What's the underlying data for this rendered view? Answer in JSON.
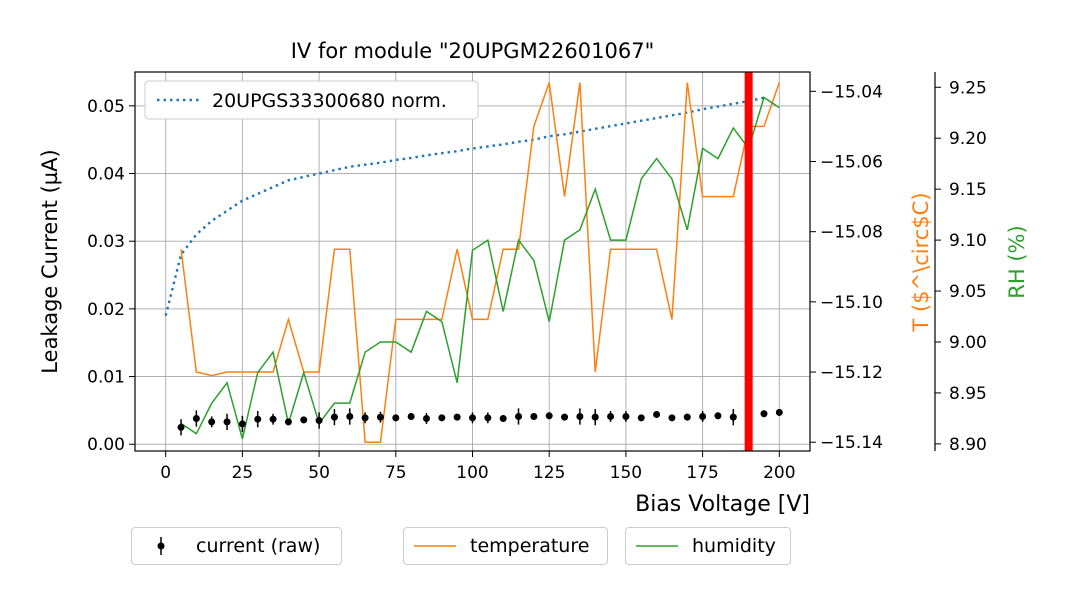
{
  "chart_data": {
    "type": "scatter",
    "title": "IV for module \"20UPGM22601067\"",
    "xlabel": "Bias Voltage [V]",
    "ylabel": "Leakage Current (µA)",
    "y2label": "T ($^\\circ$C)",
    "y3label": "RH (%)",
    "xlim": [
      -10,
      210
    ],
    "ylim": [
      -0.001,
      0.055
    ],
    "y2lim": [
      -15.1425,
      -15.0345
    ],
    "y3lim": [
      8.893,
      9.265
    ],
    "xticks": [
      "0",
      "25",
      "50",
      "75",
      "100",
      "125",
      "150",
      "175",
      "200"
    ],
    "yticks": [
      "0.00",
      "0.01",
      "0.02",
      "0.03",
      "0.04",
      "0.05"
    ],
    "y2ticks": [
      "−15.14",
      "−15.12",
      "−15.10",
      "−15.08",
      "−15.06",
      "−15.04"
    ],
    "y3ticks": [
      "8.90",
      "8.95",
      "9.00",
      "9.05",
      "9.10",
      "9.15",
      "9.20",
      "9.25"
    ],
    "grid": true,
    "colors": {
      "current": "#000000",
      "reference": "#1f77b4",
      "temperature": "#ff7f0e",
      "humidity": "#2ca02c",
      "marker_line": "#ff0000"
    },
    "vertical_line_x": 190,
    "series": [
      {
        "name": "current (raw)",
        "x": [
          5,
          10,
          15,
          20,
          25,
          30,
          35,
          40,
          45,
          50,
          55,
          60,
          65,
          70,
          75,
          80,
          85,
          90,
          95,
          100,
          105,
          110,
          115,
          120,
          125,
          130,
          135,
          140,
          145,
          150,
          155,
          160,
          165,
          170,
          175,
          180,
          185,
          190,
          195,
          200
        ],
        "values": [
          0.0025,
          0.0038,
          0.0033,
          0.0033,
          0.003,
          0.0037,
          0.0037,
          0.0033,
          0.0036,
          0.0035,
          0.004,
          0.0041,
          0.0039,
          0.004,
          0.0039,
          0.0041,
          0.0038,
          0.0039,
          0.004,
          0.0039,
          0.0039,
          0.0038,
          0.0041,
          0.0041,
          0.0042,
          0.004,
          0.0041,
          0.004,
          0.0041,
          0.0041,
          0.0039,
          0.0044,
          0.0039,
          0.004,
          0.0041,
          0.0042,
          0.004,
          0.0049,
          0.0045,
          0.0047
        ],
        "yerr": [
          0.0012,
          0.0012,
          0.0008,
          0.0012,
          0.0012,
          0.0012,
          0.0008,
          0.0005,
          0.0005,
          0.0012,
          0.0012,
          0.0012,
          0.0008,
          0.0008,
          0.0005,
          0.0005,
          0.0008,
          0.0005,
          0.0005,
          0.0008,
          0.0008,
          0.0005,
          0.0012,
          0.0005,
          0.0005,
          0.0005,
          0.0012,
          0.0012,
          0.0008,
          0.0008,
          0.0005,
          0.0005,
          0.0005,
          0.0005,
          0.0008,
          0.0005,
          0.0012,
          0.0005,
          0.0005,
          0.0005
        ]
      },
      {
        "name": "20UPGS33300680 norm.",
        "x": [
          0,
          5,
          10,
          15,
          20,
          25,
          30,
          35,
          40,
          45,
          50,
          55,
          60,
          65,
          70,
          75,
          80,
          85,
          90,
          95,
          100,
          105,
          110,
          115,
          120,
          125,
          130,
          135,
          140,
          145,
          150,
          155,
          160,
          165,
          170,
          175,
          180,
          185,
          190,
          195
        ],
        "values": [
          0.019,
          0.028,
          0.031,
          0.033,
          0.0345,
          0.036,
          0.037,
          0.038,
          0.039,
          0.0395,
          0.04,
          0.0405,
          0.041,
          0.0413,
          0.0416,
          0.042,
          0.0423,
          0.0427,
          0.043,
          0.0433,
          0.0437,
          0.044,
          0.0443,
          0.0447,
          0.045,
          0.0455,
          0.0458,
          0.0462,
          0.0466,
          0.047,
          0.0474,
          0.0478,
          0.0482,
          0.0486,
          0.049,
          0.0495,
          0.0499,
          0.0503,
          0.0507,
          0.0512
        ]
      },
      {
        "name": "temperature",
        "x": [
          5,
          10,
          15,
          20,
          25,
          30,
          35,
          40,
          45,
          50,
          55,
          60,
          65,
          70,
          75,
          80,
          85,
          90,
          95,
          100,
          105,
          110,
          115,
          120,
          125,
          130,
          135,
          140,
          145,
          150,
          155,
          160,
          165,
          170,
          175,
          180,
          185,
          190,
          195,
          200
        ],
        "values": [
          -15.085,
          -15.12,
          -15.121,
          -15.12,
          -15.12,
          -15.12,
          -15.12,
          -15.105,
          -15.12,
          -15.12,
          -15.085,
          -15.085,
          -15.14,
          -15.14,
          -15.105,
          -15.105,
          -15.105,
          -15.105,
          -15.085,
          -15.105,
          -15.105,
          -15.085,
          -15.085,
          -15.05,
          -15.0375,
          -15.07,
          -15.0375,
          -15.12,
          -15.085,
          -15.085,
          -15.085,
          -15.085,
          -15.105,
          -15.0375,
          -15.07,
          -15.07,
          -15.07,
          -15.05,
          -15.05,
          -15.0375
        ]
      },
      {
        "name": "humidity",
        "x": [
          5,
          10,
          15,
          20,
          25,
          30,
          35,
          40,
          45,
          50,
          55,
          60,
          65,
          70,
          75,
          80,
          85,
          90,
          95,
          100,
          105,
          110,
          115,
          120,
          125,
          130,
          135,
          140,
          145,
          150,
          155,
          160,
          165,
          170,
          175,
          180,
          185,
          190,
          195,
          200
        ],
        "values": [
          8.92,
          8.91,
          8.94,
          8.96,
          8.905,
          8.97,
          8.99,
          8.92,
          8.97,
          8.92,
          8.94,
          8.94,
          8.99,
          9.0,
          9.0,
          8.99,
          9.03,
          9.02,
          8.96,
          9.09,
          9.1,
          9.03,
          9.1,
          9.08,
          9.02,
          9.1,
          9.11,
          9.15,
          9.1,
          9.1,
          9.16,
          9.18,
          9.16,
          9.11,
          9.19,
          9.18,
          9.21,
          9.19,
          9.24,
          9.23
        ]
      }
    ],
    "legends": {
      "inner": "20UPGS33300680 norm.",
      "current": "current (raw)",
      "temperature": "temperature",
      "humidity": "humidity"
    }
  }
}
